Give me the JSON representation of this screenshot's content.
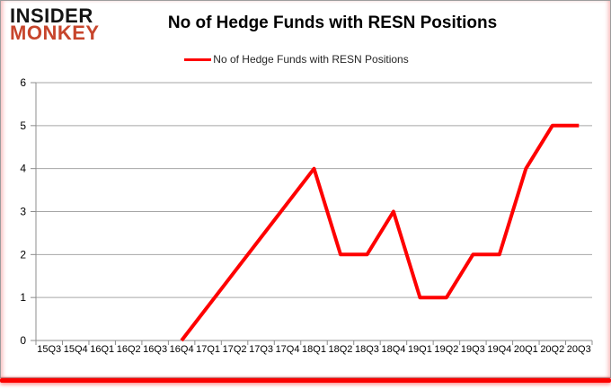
{
  "page": {
    "background": "#ffffff",
    "frame_border_color": "#9d9d9d",
    "bottom_bar_color": "#fb0200",
    "side_glow_color": "#f28282"
  },
  "logo": {
    "line1": "INSIDER",
    "line2": "MONKEY",
    "line1_color": "#141414",
    "line2_color": "#c7452c"
  },
  "header": {
    "title": "No of Hedge Funds with RESN Positions"
  },
  "legend": {
    "label": "No of Hedge Funds with RESN Positions",
    "swatch_color": "#fe0000"
  },
  "chart_data": {
    "type": "line",
    "title": "No of Hedge Funds with RESN Positions",
    "categories": [
      "15Q3",
      "15Q4",
      "16Q1",
      "16Q2",
      "16Q3",
      "16Q4",
      "17Q1",
      "17Q2",
      "17Q3",
      "17Q4",
      "18Q1",
      "18Q2",
      "18Q3",
      "18Q4",
      "19Q1",
      "19Q2",
      "19Q3",
      "19Q4",
      "20Q1",
      "20Q2",
      "20Q3"
    ],
    "series": [
      {
        "name": "No of Hedge Funds with RESN Positions",
        "color": "#fe0000",
        "values": [
          null,
          null,
          null,
          null,
          null,
          0,
          null,
          null,
          null,
          null,
          4,
          2,
          2,
          3,
          1,
          1,
          2,
          2,
          4,
          5,
          5
        ]
      }
    ],
    "xlabel": "",
    "ylabel": "",
    "ylim": [
      0,
      6
    ],
    "ytick_interval": 1,
    "yticks": [
      0,
      1,
      2,
      3,
      4,
      5,
      6
    ],
    "grid": true,
    "gap_handling": "connect",
    "legend_position": "top-center",
    "gridline_color": "#a6a6a6",
    "axis_color": "#8c8c8c",
    "tick_label_color": "#000000"
  }
}
